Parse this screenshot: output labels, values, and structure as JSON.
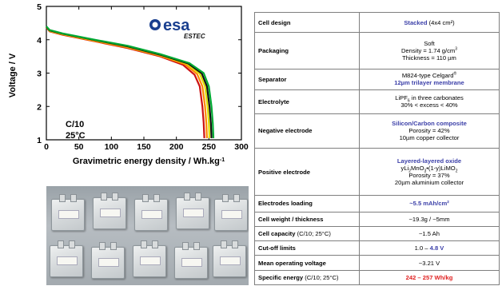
{
  "chart_data": {
    "type": "line",
    "xlabel": "Gravimetric energy density / Wh.kg",
    "xlabel_sup": "-1",
    "ylabel": "Voltage / V",
    "xlim": [
      0,
      300
    ],
    "ylim": [
      1,
      5
    ],
    "x_ticks": [
      "0",
      "50",
      "100",
      "150",
      "200",
      "250",
      "300"
    ],
    "y_ticks": [
      "1",
      "2",
      "3",
      "4",
      "5"
    ],
    "annotation_lines": [
      "C/10",
      "25°C"
    ],
    "logo": {
      "brand": "esa",
      "sub": "ESTEC"
    },
    "series": [
      {
        "color": "#cc1111",
        "values": [
          [
            0,
            4.37
          ],
          [
            5,
            4.25
          ],
          [
            25,
            4.15
          ],
          [
            75,
            3.95
          ],
          [
            125,
            3.75
          ],
          [
            175,
            3.5
          ],
          [
            210,
            3.25
          ],
          [
            228,
            2.95
          ],
          [
            236,
            2.6
          ],
          [
            240,
            2.0
          ],
          [
            242,
            1.5
          ],
          [
            243,
            1.05
          ]
        ]
      },
      {
        "color": "#ff8800",
        "values": [
          [
            0,
            4.38
          ],
          [
            5,
            4.26
          ],
          [
            25,
            4.16
          ],
          [
            75,
            3.96
          ],
          [
            125,
            3.77
          ],
          [
            175,
            3.52
          ],
          [
            213,
            3.27
          ],
          [
            232,
            2.97
          ],
          [
            240,
            2.6
          ],
          [
            244,
            2.0
          ],
          [
            246,
            1.5
          ],
          [
            247,
            1.05
          ]
        ]
      },
      {
        "color": "#dddd00",
        "values": [
          [
            0,
            4.39
          ],
          [
            5,
            4.27
          ],
          [
            25,
            4.17
          ],
          [
            75,
            3.98
          ],
          [
            125,
            3.79
          ],
          [
            175,
            3.54
          ],
          [
            216,
            3.28
          ],
          [
            236,
            2.98
          ],
          [
            244,
            2.6
          ],
          [
            248,
            2.0
          ],
          [
            250,
            1.5
          ],
          [
            251,
            1.05
          ]
        ]
      },
      {
        "color": "#111111",
        "values": [
          [
            0,
            4.39
          ],
          [
            5,
            4.28
          ],
          [
            25,
            4.18
          ],
          [
            75,
            3.99
          ],
          [
            125,
            3.8
          ],
          [
            175,
            3.55
          ],
          [
            218,
            3.29
          ],
          [
            239,
            2.99
          ],
          [
            247,
            2.6
          ],
          [
            251,
            2.0
          ],
          [
            253,
            1.5
          ],
          [
            254,
            1.05
          ]
        ]
      },
      {
        "color": "#00aa33",
        "values": [
          [
            0,
            4.4
          ],
          [
            5,
            4.29
          ],
          [
            25,
            4.19
          ],
          [
            75,
            4.0
          ],
          [
            125,
            3.82
          ],
          [
            175,
            3.57
          ],
          [
            220,
            3.3
          ],
          [
            242,
            3.0
          ],
          [
            250,
            2.6
          ],
          [
            254,
            2.0
          ],
          [
            256,
            1.5
          ],
          [
            257,
            1.05
          ]
        ]
      }
    ]
  },
  "table": {
    "rows": [
      {
        "key": "Cell design",
        "lines": [
          {
            "parts": [
              {
                "t": "Stacked",
                "s": "blue"
              },
              {
                "t": " (4x4 cm²)"
              }
            ]
          }
        ]
      },
      {
        "key": "Packaging",
        "lines": [
          {
            "parts": [
              {
                "t": "Soft"
              }
            ]
          },
          {
            "parts": [
              {
                "t": "Density = 1.74 g/cm"
              },
              {
                "t": "3",
                "sup": true
              }
            ]
          },
          {
            "parts": [
              {
                "t": "Thickness = 110 µm"
              }
            ]
          }
        ]
      },
      {
        "key": "Separator",
        "lines": [
          {
            "parts": [
              {
                "t": "M824-type Celgard"
              },
              {
                "t": "®",
                "sup": true
              }
            ]
          },
          {
            "parts": [
              {
                "t": "12µm trilayer membrane",
                "s": "blue"
              }
            ]
          }
        ]
      },
      {
        "key": "Electrolyte",
        "lines": [
          {
            "parts": [
              {
                "t": "LiPF"
              },
              {
                "t": "6",
                "sub": true
              },
              {
                "t": " in three carbonates"
              }
            ]
          },
          {
            "parts": [
              {
                "t": "30% < excess < 40%"
              }
            ]
          }
        ]
      },
      {
        "key": "Negative electrode",
        "lines": [
          {
            "parts": [
              {
                "t": "Silicon/Carbon composite",
                "s": "blue"
              }
            ]
          },
          {
            "parts": [
              {
                "t": "Porosity = 42%"
              }
            ]
          },
          {
            "parts": [
              {
                "t": "10µm copper collector"
              }
            ]
          }
        ]
      },
      {
        "key": "Positive electrode",
        "lines": [
          {
            "parts": [
              {
                "t": "Layered-layered oxide",
                "s": "blue"
              }
            ]
          },
          {
            "parts": [
              {
                "t": "yLi"
              },
              {
                "t": "2",
                "sub": true
              },
              {
                "t": "MnO"
              },
              {
                "t": "3",
                "sub": true
              },
              {
                "t": "•(1-y)LiMO"
              },
              {
                "t": "2",
                "sub": true
              }
            ]
          },
          {
            "parts": [
              {
                "t": "Porosity = 37%"
              }
            ]
          },
          {
            "parts": [
              {
                "t": "20µm aluminium collector"
              }
            ]
          }
        ]
      },
      {
        "key": "Electrodes loading",
        "lines": [
          {
            "parts": [
              {
                "t": "~5.5 mAh/cm²",
                "s": "blue"
              }
            ]
          }
        ]
      },
      {
        "key": "Cell weight / thickness",
        "lines": [
          {
            "parts": [
              {
                "t": "~19.3g / ~5mm"
              }
            ]
          }
        ]
      },
      {
        "key": "Cell capacity",
        "key_extra": "(C/10; 25°C)",
        "lines": [
          {
            "parts": [
              {
                "t": "~1.5 Ah"
              }
            ]
          }
        ]
      },
      {
        "key": "Cut-off limits",
        "lines": [
          {
            "parts": [
              {
                "t": "1.0 – "
              },
              {
                "t": "4.8 V",
                "s": "blue"
              }
            ]
          }
        ]
      },
      {
        "key": "Mean operating voltage",
        "lines": [
          {
            "parts": [
              {
                "t": "~3.21 V"
              }
            ]
          }
        ]
      },
      {
        "key": "Specific energy",
        "key_extra": "(C/10; 25°C)",
        "lines": [
          {
            "parts": [
              {
                "t": "242 – 257 Wh/kg",
                "s": "red"
              }
            ]
          }
        ]
      }
    ]
  }
}
